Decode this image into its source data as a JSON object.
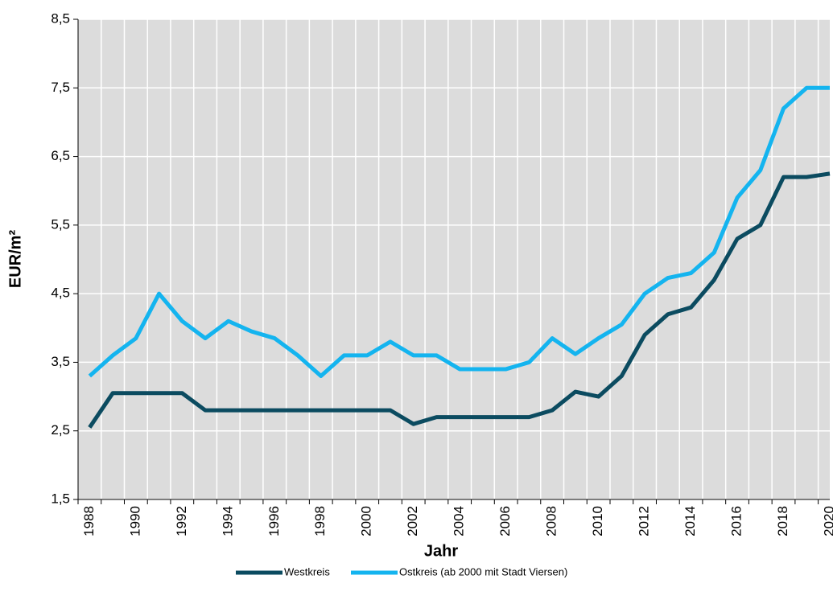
{
  "chart_data": {
    "type": "line",
    "x_label": "Jahr",
    "y_label": "EUR/m²",
    "categories": [
      "1988",
      null,
      "1990",
      null,
      "1992",
      null,
      "1994",
      null,
      "1996",
      null,
      "1998",
      null,
      "2000",
      null,
      "2002",
      null,
      "2004",
      null,
      "2006",
      null,
      "2008",
      null,
      "2010",
      null,
      "2012",
      null,
      "2014",
      null,
      "2016",
      null,
      "2018",
      null,
      "2020"
    ],
    "series": [
      {
        "name": "Westkreis",
        "color": "#0b4b60",
        "values": [
          2.55,
          3.05,
          3.05,
          3.05,
          3.05,
          2.8,
          2.8,
          2.8,
          2.8,
          2.8,
          2.8,
          2.8,
          2.8,
          2.8,
          2.6,
          2.7,
          2.7,
          2.7,
          2.7,
          2.7,
          2.8,
          3.07,
          3.0,
          3.3,
          3.9,
          4.2,
          4.3,
          4.7,
          5.3,
          5.5,
          6.2,
          6.2,
          6.25
        ]
      },
      {
        "name": "Ostkreis (ab 2000 mit Stadt Viersen)",
        "color": "#14b4ef",
        "values": [
          3.3,
          3.6,
          3.85,
          4.5,
          4.1,
          3.85,
          4.1,
          3.95,
          3.85,
          3.6,
          3.3,
          3.6,
          3.6,
          3.8,
          3.6,
          3.6,
          3.4,
          3.4,
          3.4,
          3.5,
          3.85,
          3.62,
          3.85,
          4.05,
          4.5,
          4.73,
          4.8,
          5.1,
          5.9,
          6.3,
          7.2,
          7.5,
          7.5
        ]
      }
    ],
    "ylim": [
      1.5,
      8.5
    ],
    "yticks": [
      {
        "value": 1.5,
        "label": "1,5"
      },
      {
        "value": 2.5,
        "label": "2,5"
      },
      {
        "value": 3.5,
        "label": "3,5"
      },
      {
        "value": 4.5,
        "label": "4,5"
      },
      {
        "value": 5.5,
        "label": "5,5"
      },
      {
        "value": 6.5,
        "label": "6,5"
      },
      {
        "value": 7.5,
        "label": "7,5"
      },
      {
        "value": 8.5,
        "label": "8,5"
      }
    ],
    "grid": true,
    "legend": "bottom"
  }
}
